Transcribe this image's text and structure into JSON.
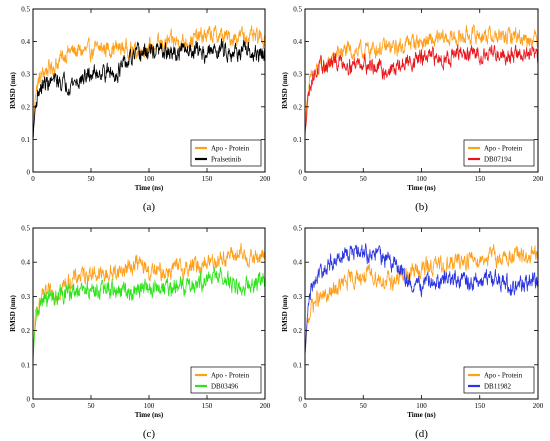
{
  "chart_data": [
    {
      "panel_label": "(a)",
      "type": "line",
      "xlabel": "Time (ns)",
      "ylabel": "RMSD (nm)",
      "xlim": [
        0,
        200
      ],
      "ylim": [
        0,
        0.5
      ],
      "x_ticks": [
        "0",
        "50",
        "100",
        "150",
        "200"
      ],
      "y_ticks": [
        "0",
        "0.1",
        "0.2",
        "0.3",
        "0.4",
        "0.5"
      ],
      "legend_position": "bottom-right",
      "series": [
        {
          "name": "Apo - Protein",
          "color": "#ff9f1a",
          "x": [
            0,
            2,
            5,
            10,
            20,
            30,
            40,
            50,
            60,
            70,
            80,
            90,
            100,
            110,
            120,
            130,
            140,
            150,
            160,
            170,
            180,
            190,
            200
          ],
          "y": [
            0.12,
            0.24,
            0.28,
            0.31,
            0.33,
            0.37,
            0.37,
            0.37,
            0.38,
            0.38,
            0.38,
            0.37,
            0.38,
            0.39,
            0.4,
            0.4,
            0.41,
            0.42,
            0.42,
            0.41,
            0.42,
            0.41,
            0.41
          ]
        },
        {
          "name": "Pralsetinib",
          "color": "#000000",
          "x": [
            0,
            2,
            5,
            10,
            20,
            30,
            40,
            50,
            60,
            70,
            80,
            90,
            100,
            110,
            120,
            130,
            140,
            150,
            160,
            170,
            180,
            190,
            200
          ],
          "y": [
            0.1,
            0.2,
            0.25,
            0.27,
            0.28,
            0.27,
            0.28,
            0.3,
            0.31,
            0.3,
            0.33,
            0.36,
            0.37,
            0.37,
            0.36,
            0.37,
            0.38,
            0.36,
            0.38,
            0.37,
            0.37,
            0.36,
            0.36
          ]
        }
      ]
    },
    {
      "panel_label": "(b)",
      "type": "line",
      "xlabel": "Time (ns)",
      "ylabel": "RMSD (nm)",
      "xlim": [
        0,
        200
      ],
      "ylim": [
        0,
        0.5
      ],
      "x_ticks": [
        "0",
        "50",
        "100",
        "150",
        "200"
      ],
      "y_ticks": [
        "0",
        "0.1",
        "0.2",
        "0.3",
        "0.4",
        "0.5"
      ],
      "legend_position": "bottom-right",
      "series": [
        {
          "name": "Apo - Protein",
          "color": "#ff9f1a",
          "x": [
            0,
            2,
            5,
            10,
            20,
            30,
            40,
            50,
            60,
            70,
            80,
            90,
            100,
            110,
            120,
            130,
            140,
            150,
            160,
            170,
            180,
            190,
            200
          ],
          "y": [
            0.12,
            0.24,
            0.28,
            0.31,
            0.33,
            0.37,
            0.37,
            0.37,
            0.38,
            0.38,
            0.38,
            0.4,
            0.4,
            0.4,
            0.41,
            0.41,
            0.42,
            0.42,
            0.42,
            0.41,
            0.42,
            0.41,
            0.41
          ]
        },
        {
          "name": "DB07194",
          "color": "#e8161b",
          "x": [
            0,
            2,
            5,
            10,
            20,
            30,
            40,
            50,
            60,
            70,
            80,
            90,
            100,
            110,
            120,
            130,
            140,
            150,
            160,
            170,
            180,
            190,
            200
          ],
          "y": [
            0.1,
            0.22,
            0.28,
            0.31,
            0.33,
            0.34,
            0.33,
            0.34,
            0.32,
            0.31,
            0.32,
            0.34,
            0.35,
            0.35,
            0.35,
            0.36,
            0.36,
            0.36,
            0.37,
            0.36,
            0.36,
            0.36,
            0.35
          ]
        }
      ]
    },
    {
      "panel_label": "(c)",
      "type": "line",
      "xlabel": "Time (ns)",
      "ylabel": "RMSD (nm)",
      "xlim": [
        0,
        200
      ],
      "ylim": [
        0,
        0.5
      ],
      "x_ticks": [
        "0",
        "50",
        "100",
        "150",
        "200"
      ],
      "y_ticks": [
        "0",
        "0.1",
        "0.2",
        "0.3",
        "0.4",
        "0.5"
      ],
      "legend_position": "bottom-right",
      "series": [
        {
          "name": "Apo - Protein",
          "color": "#ff9f1a",
          "x": [
            0,
            2,
            5,
            10,
            20,
            30,
            40,
            50,
            60,
            70,
            80,
            90,
            100,
            110,
            120,
            130,
            140,
            150,
            160,
            170,
            180,
            190,
            200
          ],
          "y": [
            0.12,
            0.24,
            0.28,
            0.3,
            0.31,
            0.34,
            0.36,
            0.37,
            0.36,
            0.37,
            0.38,
            0.4,
            0.37,
            0.37,
            0.38,
            0.38,
            0.39,
            0.4,
            0.41,
            0.42,
            0.42,
            0.41,
            0.42
          ]
        },
        {
          "name": "DB03496",
          "color": "#2de31a",
          "x": [
            0,
            2,
            5,
            10,
            20,
            30,
            40,
            50,
            60,
            70,
            80,
            90,
            100,
            110,
            120,
            130,
            140,
            150,
            160,
            170,
            180,
            190,
            200
          ],
          "y": [
            0.1,
            0.22,
            0.27,
            0.29,
            0.3,
            0.31,
            0.31,
            0.32,
            0.32,
            0.32,
            0.31,
            0.32,
            0.32,
            0.33,
            0.32,
            0.33,
            0.34,
            0.35,
            0.36,
            0.34,
            0.33,
            0.34,
            0.34
          ]
        }
      ]
    },
    {
      "panel_label": "(d)",
      "type": "line",
      "xlabel": "Time (ns)",
      "ylabel": "RMSD (nm)",
      "xlim": [
        0,
        200
      ],
      "ylim": [
        0,
        0.5
      ],
      "x_ticks": [
        "0",
        "50",
        "100",
        "150",
        "200"
      ],
      "y_ticks": [
        "0",
        "0.1",
        "0.2",
        "0.3",
        "0.4",
        "0.5"
      ],
      "legend_position": "bottom-right",
      "series": [
        {
          "name": "Apo - Protein",
          "color": "#ff9f1a",
          "x": [
            0,
            2,
            5,
            10,
            20,
            30,
            40,
            50,
            60,
            70,
            80,
            90,
            100,
            110,
            120,
            130,
            140,
            150,
            160,
            170,
            180,
            190,
            200
          ],
          "y": [
            0.12,
            0.22,
            0.27,
            0.29,
            0.3,
            0.33,
            0.35,
            0.36,
            0.36,
            0.34,
            0.35,
            0.37,
            0.38,
            0.39,
            0.39,
            0.4,
            0.41,
            0.41,
            0.42,
            0.41,
            0.42,
            0.41,
            0.42
          ]
        },
        {
          "name": "DB11982",
          "color": "#2b35e0",
          "x": [
            0,
            2,
            5,
            10,
            20,
            30,
            40,
            50,
            60,
            70,
            80,
            90,
            100,
            110,
            120,
            130,
            140,
            150,
            160,
            170,
            180,
            190,
            200
          ],
          "y": [
            0.12,
            0.26,
            0.31,
            0.35,
            0.39,
            0.42,
            0.43,
            0.43,
            0.42,
            0.41,
            0.38,
            0.34,
            0.33,
            0.34,
            0.35,
            0.35,
            0.34,
            0.35,
            0.35,
            0.34,
            0.33,
            0.34,
            0.35
          ]
        }
      ]
    }
  ]
}
